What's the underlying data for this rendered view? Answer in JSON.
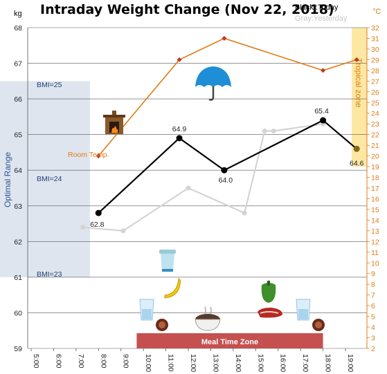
{
  "chart_data": {
    "type": "line",
    "title": "Intraday Weight Change (Nov 22, 2018)",
    "legend": {
      "today": "Black :Today",
      "yesterday": "Gray:Yesterday"
    },
    "ylabel_left": "kg",
    "ylabel_right": "°C",
    "ylim_left": [
      59,
      68
    ],
    "ylim_right": [
      2,
      32
    ],
    "yticks_left": [
      "59",
      "60",
      "61",
      "62",
      "63",
      "64",
      "65",
      "66",
      "67",
      "68"
    ],
    "yticks_right": [
      "2",
      "3",
      "4",
      "5",
      "6",
      "7",
      "8",
      "9",
      "10",
      "11",
      "12",
      "13",
      "14",
      "15",
      "16",
      "17",
      "18",
      "19",
      "20",
      "21",
      "22",
      "23",
      "24",
      "25",
      "26",
      "27",
      "28",
      "29",
      "30",
      "31",
      "32"
    ],
    "x_ticks": [
      "5:00",
      "6:00",
      "7:00",
      "8:00",
      "9:00",
      "10:00",
      "11:00",
      "12:00",
      "13:00",
      "14:00",
      "15:00",
      "16:00",
      "17:00",
      "18:00",
      "19:00"
    ],
    "series": [
      {
        "name": "Today",
        "color": "#000000",
        "x": [
          8.0,
          11.6,
          13.6,
          18.0,
          19.5
        ],
        "y": [
          62.8,
          64.9,
          64.0,
          65.4,
          64.6
        ],
        "labels": [
          "62.8",
          "64.9",
          "64.0",
          "65.4",
          "64.6"
        ]
      },
      {
        "name": "Yesterday",
        "color": "#d4d4d4",
        "x": [
          7.3,
          9.1,
          12.0,
          14.5,
          15.4,
          15.8,
          18.0
        ],
        "y": [
          62.4,
          62.3,
          63.5,
          62.8,
          65.1,
          65.1,
          65.3
        ]
      },
      {
        "name": "Room Temp.",
        "axis": "right",
        "color": "#e07b14",
        "x": [
          8.0,
          11.6,
          13.6,
          18.0,
          19.5
        ],
        "y": [
          20.0,
          29.0,
          31.0,
          28.0,
          29.0
        ]
      }
    ],
    "annotations": {
      "room_temp": "Room Temp.",
      "bmi_25": "BMI=25",
      "bmi_24": "BMI=24",
      "bmi_23": "BMI=23",
      "optimal_range": "Optimal Range",
      "tropical_zone": "Tropical zone",
      "meal_time_zone": "Meal Time Zone"
    },
    "bands": {
      "optimal_range_kg": [
        61.0,
        66.5
      ],
      "tropical_zone_c": [
        19.0,
        32.0
      ],
      "meal_time_x": [
        9.7,
        18.0
      ]
    },
    "icons": [
      "fireplace-icon",
      "umbrella-icon",
      "yogurt-icon",
      "banana-icon",
      "water-glass-icon",
      "sausage-icon",
      "soup-bowl-icon",
      "pepper-icon",
      "steak-icon",
      "water-glass-icon",
      "sausage-icon"
    ],
    "grid": true
  }
}
